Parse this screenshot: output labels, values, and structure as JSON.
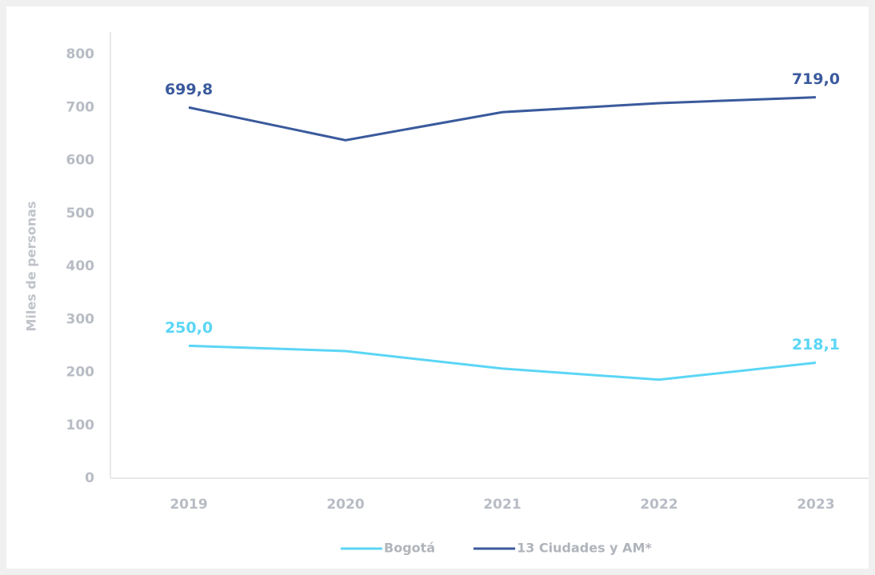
{
  "chart_data": {
    "type": "line",
    "y_axis_label": "Miles de personas",
    "categories": [
      "2019",
      "2020",
      "2021",
      "2022",
      "2023"
    ],
    "series": [
      {
        "name": "Bogotá",
        "color": "#5bd6f5",
        "values": [
          250.0,
          240,
          207,
          186,
          218.1
        ],
        "value_labels": [
          "250,0",
          null,
          null,
          null,
          "218,1"
        ]
      },
      {
        "name": "13 Ciudades y AM*",
        "color": "#3a5a9c",
        "values": [
          699.8,
          638,
          691,
          708,
          719.0
        ],
        "value_labels": [
          "699,8",
          null,
          null,
          null,
          "719,0"
        ]
      }
    ],
    "ylim": [
      0,
      800
    ],
    "yticks": [
      0,
      100,
      200,
      300,
      400,
      500,
      600,
      700,
      800
    ],
    "grid": false,
    "legend": "bottom"
  }
}
